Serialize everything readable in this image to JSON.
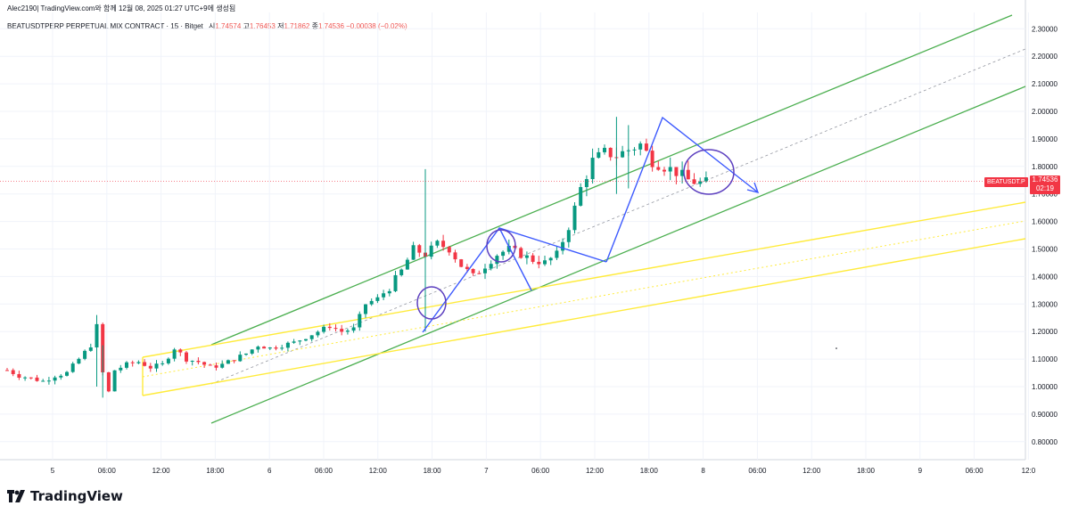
{
  "author_line": "Alec2190| TradingView.com와 함께 12월 08, 2025 01:27 UTC+9에 생성됨",
  "symbol_title": "BEATUSDTPERP PERPETUAL MIX CONTRACT · 15 · Bitget",
  "ohlc": {
    "open_label": "시",
    "open": "1.74574",
    "high_label": "고",
    "high": "1.76453",
    "low_label": "저",
    "low": "1.71862",
    "close_label": "종",
    "close": "1.74536",
    "change": "−0.00038 (−0.02%)"
  },
  "price_tag": {
    "symbol": "BEATUSDT.P",
    "price": "1.74536",
    "countdown": "02:19"
  },
  "brand": "TradingView",
  "colors": {
    "up": "#089981",
    "down": "#f23645",
    "channel": "#4caf50",
    "yellow": "#ffeb3b",
    "drawing": "#3d5afe",
    "circle": "#5c3fbf"
  },
  "chart_data": {
    "type": "candlestick",
    "title": "BEATUSDTPERP PERPETUAL MIX CONTRACT · 15 · Bitget",
    "y_ticks": [
      "2.30000",
      "2.20000",
      "2.10000",
      "2.00000",
      "1.90000",
      "1.80000",
      "1.70000",
      "1.60000",
      "1.50000",
      "1.40000",
      "1.30000",
      "1.20000",
      "1.10000",
      "1.00000",
      "0.90000",
      "0.80000"
    ],
    "ylim": [
      0.75,
      2.35
    ],
    "x_ticks": [
      "5",
      "06:00",
      "12:00",
      "18:00",
      "6",
      "06:00",
      "12:00",
      "18:00",
      "7",
      "06:00",
      "12:00",
      "18:00",
      "8",
      "06:00",
      "12:00",
      "18:00",
      "9",
      "06:00",
      "12:0"
    ],
    "price_path": [
      [
        0,
        1.06
      ],
      [
        2,
        1.04
      ],
      [
        4,
        1.03
      ],
      [
        6,
        1.02
      ],
      [
        8,
        1.04
      ],
      [
        10,
        1.05
      ],
      [
        12,
        1.1
      ],
      [
        14,
        1.15
      ],
      [
        15,
        1.22
      ],
      [
        16,
        1.05
      ],
      [
        17,
        0.98
      ],
      [
        18,
        1.06
      ],
      [
        20,
        1.08
      ],
      [
        22,
        1.09
      ],
      [
        24,
        1.07
      ],
      [
        26,
        1.08
      ],
      [
        28,
        1.14
      ],
      [
        30,
        1.1
      ],
      [
        32,
        1.09
      ],
      [
        34,
        1.07
      ],
      [
        36,
        1.08
      ],
      [
        38,
        1.1
      ],
      [
        40,
        1.12
      ],
      [
        42,
        1.15
      ],
      [
        44,
        1.14
      ],
      [
        46,
        1.15
      ],
      [
        48,
        1.16
      ],
      [
        50,
        1.18
      ],
      [
        52,
        1.2
      ],
      [
        54,
        1.22
      ],
      [
        56,
        1.2
      ],
      [
        58,
        1.21
      ],
      [
        60,
        1.3
      ],
      [
        62,
        1.32
      ],
      [
        64,
        1.36
      ],
      [
        66,
        1.42
      ],
      [
        68,
        1.5
      ],
      [
        70,
        1.48
      ],
      [
        72,
        1.52
      ],
      [
        74,
        1.5
      ],
      [
        76,
        1.44
      ],
      [
        78,
        1.4
      ],
      [
        80,
        1.44
      ],
      [
        82,
        1.48
      ],
      [
        84,
        1.5
      ],
      [
        86,
        1.48
      ],
      [
        88,
        1.46
      ],
      [
        90,
        1.45
      ],
      [
        92,
        1.48
      ],
      [
        94,
        1.58
      ],
      [
        96,
        1.72
      ],
      [
        98,
        1.82
      ],
      [
        100,
        1.85
      ],
      [
        102,
        1.84
      ],
      [
        104,
        1.86
      ],
      [
        106,
        1.88
      ],
      [
        108,
        1.82
      ],
      [
        110,
        1.8
      ],
      [
        112,
        1.78
      ],
      [
        114,
        1.75
      ],
      [
        116,
        1.74
      ]
    ],
    "last_price": 1.74536,
    "annotations": [
      {
        "type": "channel",
        "color": "green"
      },
      {
        "type": "channel",
        "color": "yellow"
      },
      {
        "type": "triangle",
        "color": "blue"
      },
      {
        "type": "circles",
        "count": 3
      }
    ]
  }
}
